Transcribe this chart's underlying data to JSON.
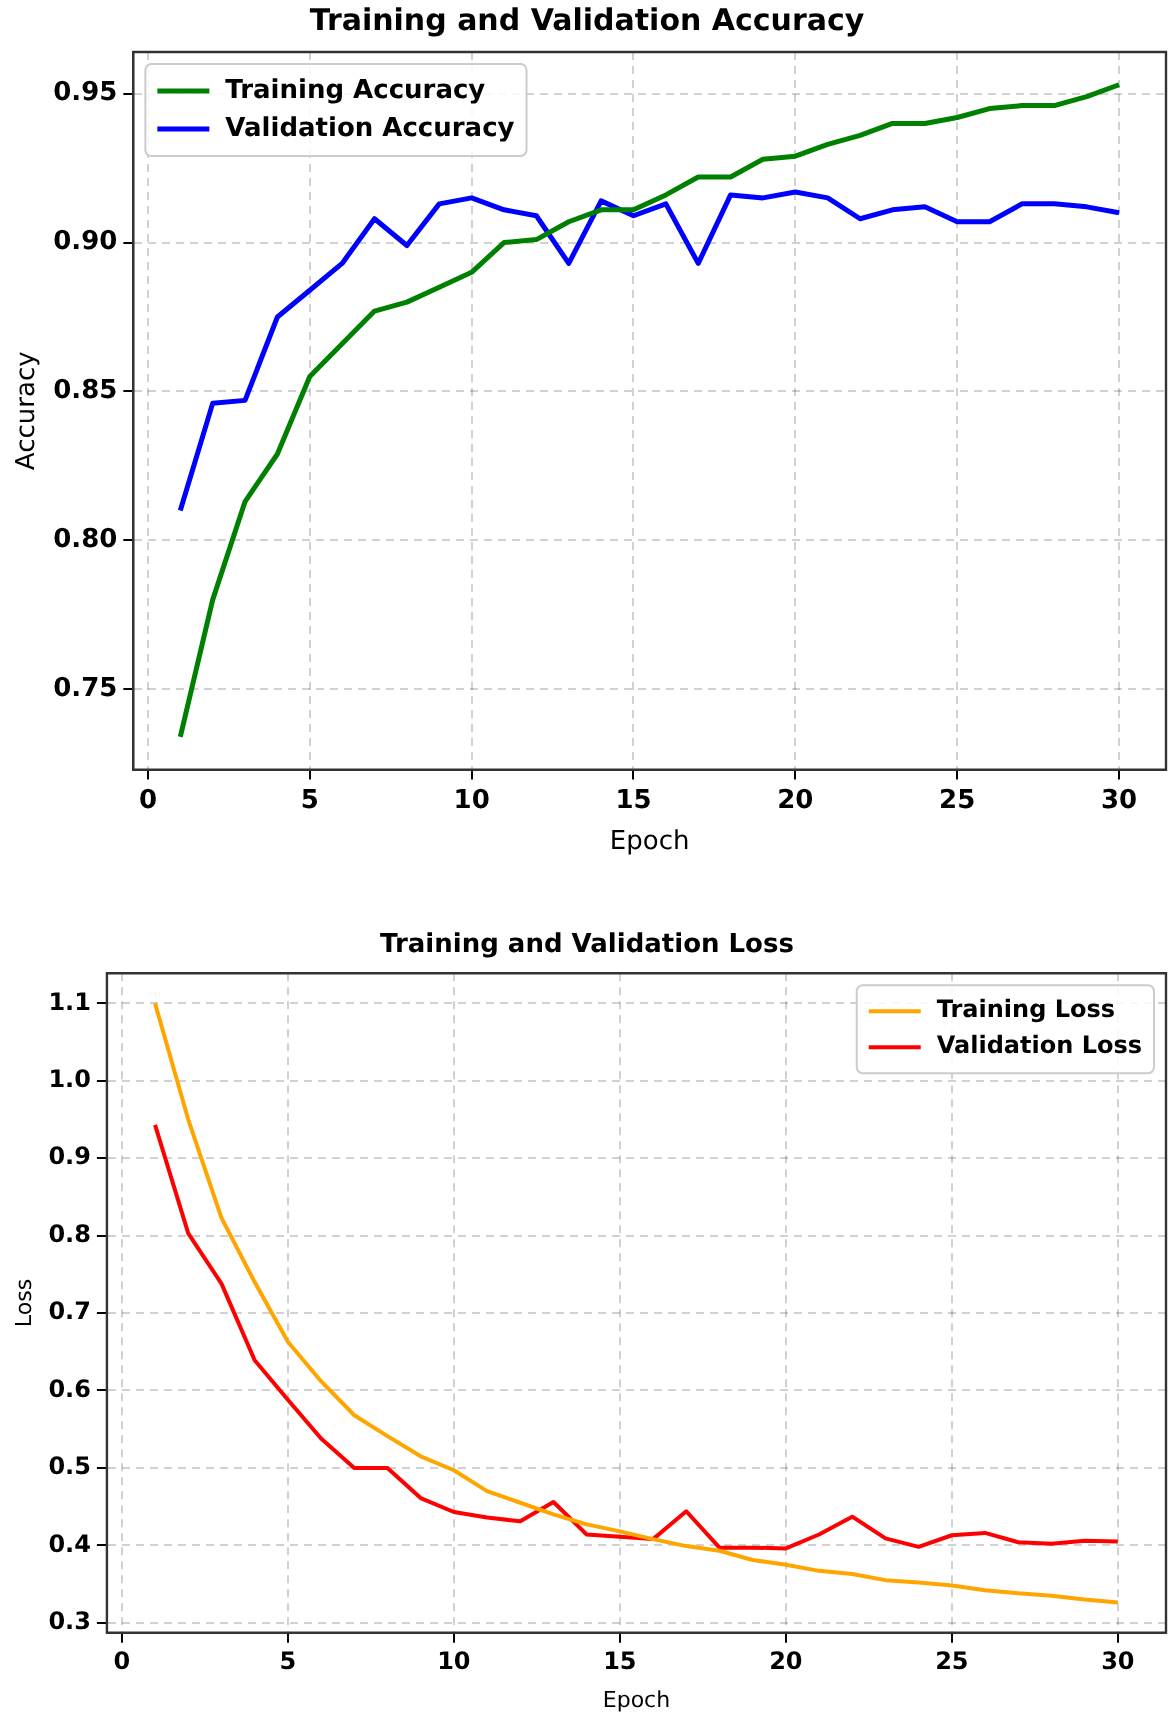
{
  "chart_data": [
    {
      "type": "line",
      "title": "Training and Validation Accuracy",
      "xlabel": "Epoch",
      "ylabel": "Accuracy",
      "x": [
        1,
        2,
        3,
        4,
        5,
        6,
        7,
        8,
        9,
        10,
        11,
        12,
        13,
        14,
        15,
        16,
        17,
        18,
        19,
        20,
        21,
        22,
        23,
        24,
        25,
        26,
        27,
        28,
        29,
        30
      ],
      "series": [
        {
          "name": "Training Accuracy",
          "color": "#008000",
          "values": [
            0.734,
            0.78,
            0.813,
            0.829,
            0.855,
            0.866,
            0.877,
            0.88,
            0.885,
            0.89,
            0.9,
            0.901,
            0.907,
            0.911,
            0.911,
            0.916,
            0.922,
            0.922,
            0.928,
            0.929,
            0.933,
            0.936,
            0.94,
            0.94,
            0.942,
            0.945,
            0.946,
            0.946,
            0.949,
            0.953
          ]
        },
        {
          "name": "Validation Accuracy",
          "color": "#0000ff",
          "values": [
            0.81,
            0.846,
            0.847,
            0.875,
            0.884,
            0.893,
            0.908,
            0.899,
            0.913,
            0.915,
            0.911,
            0.909,
            0.893,
            0.914,
            0.909,
            0.913,
            0.893,
            0.916,
            0.915,
            0.917,
            0.915,
            0.908,
            0.911,
            0.912,
            0.907,
            0.907,
            0.913,
            0.913,
            0.912,
            0.91
          ]
        }
      ],
      "xlim": [
        -0.45,
        31.45
      ],
      "ylim": [
        0.723,
        0.964
      ],
      "xticks": [
        0,
        5,
        10,
        15,
        20,
        25,
        30
      ],
      "yticks": [
        0.75,
        {
          "value": 0.8,
          "label": "0.80"
        },
        0.85,
        {
          "value": 0.9,
          "label": "0.90"
        },
        0.95
      ],
      "grid": true,
      "legend": "top left"
    },
    {
      "type": "line",
      "title": "Training and Validation Loss",
      "xlabel": "Epoch",
      "ylabel": "Loss",
      "x": [
        1,
        2,
        3,
        4,
        5,
        6,
        7,
        8,
        9,
        10,
        11,
        12,
        13,
        14,
        15,
        16,
        17,
        18,
        19,
        20,
        21,
        22,
        23,
        24,
        25,
        26,
        27,
        28,
        29,
        30
      ],
      "series": [
        {
          "name": "Training Loss",
          "color": "#ffa500",
          "values": [
            1.1,
            0.95,
            0.823,
            0.74,
            0.663,
            0.612,
            0.568,
            0.541,
            0.515,
            0.497,
            0.47,
            0.455,
            0.44,
            0.427,
            0.418,
            0.408,
            0.399,
            0.393,
            0.381,
            0.375,
            0.367,
            0.363,
            0.355,
            0.352,
            0.348,
            0.342,
            0.338,
            0.335,
            0.33,
            0.326
          ]
        },
        {
          "name": "Validation Loss",
          "color": "#ff0000",
          "values": [
            0.943,
            0.803,
            0.738,
            0.639,
            0.588,
            0.538,
            0.5,
            0.5,
            0.461,
            0.443,
            0.436,
            0.431,
            0.456,
            0.414,
            0.411,
            0.408,
            0.444,
            0.397,
            0.397,
            0.396,
            0.414,
            0.437,
            0.409,
            0.398,
            0.413,
            0.416,
            0.404,
            0.402,
            0.406,
            0.405
          ]
        }
      ],
      "xlim": [
        -0.45,
        31.45
      ],
      "ylim": [
        0.287,
        1.139
      ],
      "xticks": [
        0,
        5,
        10,
        15,
        20,
        25,
        30
      ],
      "yticks": [
        0.3,
        0.4,
        0.5,
        0.6,
        0.7,
        0.8,
        0.9,
        {
          "value": 1,
          "label": "1.0"
        },
        1.1
      ],
      "grid": true,
      "legend": "top right"
    }
  ]
}
